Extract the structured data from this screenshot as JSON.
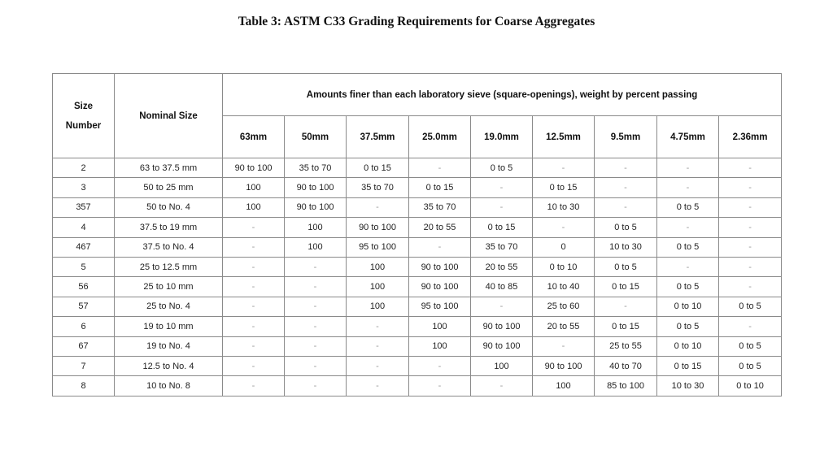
{
  "title": "Table 3: ASTM C33 Grading Requirements for Coarse Aggregates",
  "table": {
    "size_number_header": [
      "Size",
      "Number"
    ],
    "nominal_size_header": "Nominal Size",
    "group_header": "Amounts finer than each laboratory sieve (square-openings), weight by percent passing",
    "sieves": [
      "63mm",
      "50mm",
      "37.5mm",
      "25.0mm",
      "19.0mm",
      "12.5mm",
      "9.5mm",
      "4.75mm",
      "2.36mm"
    ],
    "rows": [
      {
        "size": "2",
        "nominal": "63 to 37.5 mm",
        "values": [
          "90 to 100",
          "35 to 70",
          "0 to 15",
          "-",
          "0 to 5",
          "-",
          "-",
          "-",
          "-"
        ]
      },
      {
        "size": "3",
        "nominal": "50 to 25 mm",
        "values": [
          "100",
          "90 to 100",
          "35 to 70",
          "0 to 15",
          "-",
          "0 to 15",
          "-",
          "-",
          "-"
        ]
      },
      {
        "size": "357",
        "nominal": "50 to No. 4",
        "values": [
          "100",
          "90 to 100",
          "-",
          "35 to 70",
          "-",
          "10 to 30",
          "-",
          "0 to 5",
          "-"
        ]
      },
      {
        "size": "4",
        "nominal": "37.5 to 19 mm",
        "values": [
          "-",
          "100",
          "90 to 100",
          "20 to 55",
          "0 to 15",
          "-",
          "0 to 5",
          "-",
          "-"
        ]
      },
      {
        "size": "467",
        "nominal": "37.5 to No. 4",
        "values": [
          "-",
          "100",
          "95 to 100",
          "-",
          "35 to 70",
          "0",
          "10 to 30",
          "0 to 5",
          "-"
        ]
      },
      {
        "size": "5",
        "nominal": "25 to 12.5 mm",
        "values": [
          "-",
          "-",
          "100",
          "90 to 100",
          "20 to 55",
          "0 to 10",
          "0 to 5",
          "-",
          "-"
        ]
      },
      {
        "size": "56",
        "nominal": "25 to 10 mm",
        "values": [
          "-",
          "-",
          "100",
          "90 to 100",
          "40 to 85",
          "10 to 40",
          "0 to 15",
          "0 to 5",
          "-"
        ]
      },
      {
        "size": "57",
        "nominal": "25 to No. 4",
        "values": [
          "-",
          "-",
          "100",
          "95 to 100",
          "-",
          "25 to 60",
          "-",
          "0 to 10",
          "0 to 5"
        ]
      },
      {
        "size": "6",
        "nominal": "19 to 10 mm",
        "values": [
          "-",
          "-",
          "-",
          "100",
          "90 to 100",
          "20 to 55",
          "0 to 15",
          "0 to 5",
          "-"
        ]
      },
      {
        "size": "67",
        "nominal": "19 to No. 4",
        "values": [
          "-",
          "-",
          "-",
          "100",
          "90 to 100",
          "-",
          "25 to 55",
          "0 to 10",
          "0 to 5"
        ]
      },
      {
        "size": "7",
        "nominal": "12.5 to No. 4",
        "values": [
          "-",
          "-",
          "-",
          "-",
          "100",
          "90 to 100",
          "40 to 70",
          "0 to 15",
          "0 to 5"
        ]
      },
      {
        "size": "8",
        "nominal": "10 to No. 8",
        "values": [
          "-",
          "-",
          "-",
          "-",
          "-",
          "100",
          "85 to 100",
          "10 to 30",
          "0 to 10"
        ]
      }
    ]
  }
}
